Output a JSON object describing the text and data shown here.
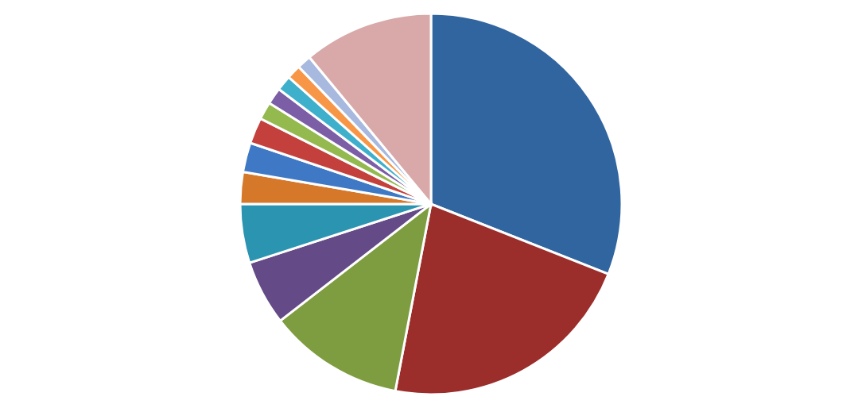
{
  "chart_data": {
    "type": "pie",
    "categories": [
      null,
      null,
      null,
      null,
      null,
      null,
      null,
      null,
      null,
      null,
      null,
      null,
      null,
      null
    ],
    "values": [
      31,
      22,
      11.5,
      5.5,
      5,
      2.7,
      2.5,
      2.2,
      1.5,
      1.4,
      1.3,
      1.2,
      1.2,
      11
    ],
    "colors": [
      "#31659f",
      "#9b2d2a",
      "#7e9d40",
      "#644a87",
      "#2b94b0",
      "#d5782a",
      "#3f78c4",
      "#c4403c",
      "#93b94f",
      "#7b5ea5",
      "#3fb0cc",
      "#f79646",
      "#a7b9df",
      "#d9a8a8"
    ]
  }
}
